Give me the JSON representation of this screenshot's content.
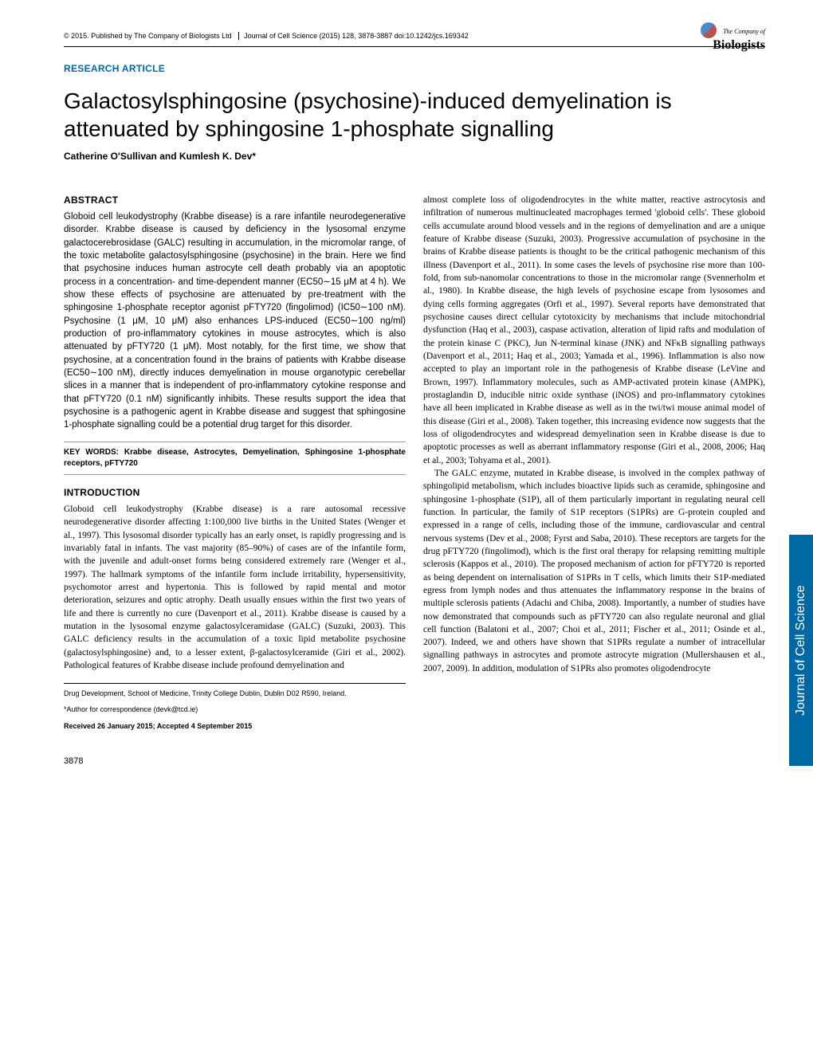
{
  "header": {
    "copyright": "© 2015. Published by The Company of Biologists Ltd",
    "journal": "Journal of Cell Science (2015) 128, 3878-3887 doi:10.1242/jcs.169342"
  },
  "logo": {
    "top": "The Company of",
    "main": "Biologists"
  },
  "article_type": "RESEARCH ARTICLE",
  "title": "Galactosylsphingosine (psychosine)-induced demyelination is attenuated by sphingosine 1-phosphate signalling",
  "authors": "Catherine O'Sullivan and Kumlesh K. Dev*",
  "abstract_head": "ABSTRACT",
  "abstract": "Globoid cell leukodystrophy (Krabbe disease) is a rare infantile neurodegenerative disorder. Krabbe disease is caused by deficiency in the lysosomal enzyme galactocerebrosidase (GALC) resulting in accumulation, in the micromolar range, of the toxic metabolite galactosylsphingosine (psychosine) in the brain. Here we find that psychosine induces human astrocyte cell death probably via an apoptotic process in a concentration- and time-dependent manner (EC50∼15 μM at 4 h). We show these effects of psychosine are attenuated by pre-treatment with the sphingosine 1-phosphate receptor agonist pFTY720 (fingolimod) (IC50∼100 nM). Psychosine (1 μM, 10 μM) also enhances LPS-induced (EC50∼100 ng/ml) production of pro-inflammatory cytokines in mouse astrocytes, which is also attenuated by pFTY720 (1 μM). Most notably, for the first time, we show that psychosine, at a concentration found in the brains of patients with Krabbe disease (EC50∼100 nM), directly induces demyelination in mouse organotypic cerebellar slices in a manner that is independent of pro-inflammatory cytokine response and that pFTY720 (0.1 nM) significantly inhibits. These results support the idea that psychosine is a pathogenic agent in Krabbe disease and suggest that sphingosine 1-phosphate signalling could be a potential drug target for this disorder.",
  "keywords": "KEY WORDS: Krabbe disease, Astrocytes, Demyelination, Sphingosine 1-phosphate receptors, pFTY720",
  "intro_head": "INTRODUCTION",
  "intro_p1": "Globoid cell leukodystrophy (Krabbe disease) is a rare autosomal recessive neurodegenerative disorder affecting 1:100,000 live births in the United States (Wenger et al., 1997). This lysosomal disorder typically has an early onset, is rapidly progressing and is invariably fatal in infants. The vast majority (85–90%) of cases are of the infantile form, with the juvenile and adult-onset forms being considered extremely rare (Wenger et al., 1997). The hallmark symptoms of the infantile form include irritability, hypersensitivity, psychomotor arrest and hypertonia. This is followed by rapid mental and motor deterioration, seizures and optic atrophy. Death usually ensues within the first two years of life and there is currently no cure (Davenport et al., 2011). Krabbe disease is caused by a mutation in the lysosomal enzyme galactosylceramidase (GALC) (Suzuki, 2003). This GALC deficiency results in the accumulation of a toxic lipid metabolite psychosine (galactosylsphingosine) and, to a lesser extent, β-galactosylceramide (Giri et al., 2002). Pathological features of Krabbe disease include profound demyelination and",
  "col2_p1": "almost complete loss of oligodendrocytes in the white matter, reactive astrocytosis and infiltration of numerous multinucleated macrophages termed 'globoid cells'. These globoid cells accumulate around blood vessels and in the regions of demyelination and are a unique feature of Krabbe disease (Suzuki, 2003). Progressive accumulation of psychosine in the brains of Krabbe disease patients is thought to be the critical pathogenic mechanism of this illness (Davenport et al., 2011). In some cases the levels of psychosine rise more than 100-fold, from sub-nanomolar concentrations to those in the micromolar range (Svennerholm et al., 1980). In Krabbe disease, the high levels of psychosine escape from lysosomes and dying cells forming aggregates (Orfi et al., 1997). Several reports have demonstrated that psychosine causes direct cellular cytotoxicity by mechanisms that include mitochondrial dysfunction (Haq et al., 2003), caspase activation, alteration of lipid rafts and modulation of the protein kinase C (PKC), Jun N-terminal kinase (JNK) and NFκB signalling pathways (Davenport et al., 2011; Haq et al., 2003; Yamada et al., 1996). Inflammation is also now accepted to play an important role in the pathogenesis of Krabbe disease (LeVine and Brown, 1997). Inflammatory molecules, such as AMP-activated protein kinase (AMPK), prostaglandin D, inducible nitric oxide synthase (iNOS) and pro-inflammatory cytokines have all been implicated in Krabbe disease as well as in the twi/twi mouse animal model of this disease (Giri et al., 2008). Taken together, this increasing evidence now suggests that the loss of oligodendrocytes and widespread demyelination seen in Krabbe disease is due to apoptotic processes as well as aberrant inflammatory response (Giri et al., 2008, 2006; Haq et al., 2003; Tohyama et al., 2001).",
  "col2_p2": "The GALC enzyme, mutated in Krabbe disease, is involved in the complex pathway of sphingolipid metabolism, which includes bioactive lipids such as ceramide, sphingosine and sphingosine 1-phosphate (S1P), all of them particularly important in regulating neural cell function. In particular, the family of S1P receptors (S1PRs) are G-protein coupled and expressed in a range of cells, including those of the immune, cardiovascular and central nervous systems (Dev et al., 2008; Fyrst and Saba, 2010). These receptors are targets for the drug pFTY720 (fingolimod), which is the first oral therapy for relapsing remitting multiple sclerosis (Kappos et al., 2010). The proposed mechanism of action for pFTY720 is reported as being dependent on internalisation of S1PRs in T cells, which limits their S1P-mediated egress from lymph nodes and thus attenuates the inflammatory response in the brains of multiple sclerosis patients (Adachi and Chiba, 2008). Importantly, a number of studies have now demonstrated that compounds such as pFTY720 can also regulate neuronal and glial cell function (Balatoni et al., 2007; Choi et al., 2011; Fischer et al., 2011; Osinde et al., 2007). Indeed, we and others have shown that S1PRs regulate a number of intracellular signalling pathways in astrocytes and promote astrocyte migration (Mullershausen et al., 2007, 2009). In addition, modulation of S1PRs also promotes oligodendrocyte",
  "affiliation": "Drug Development, School of Medicine, Trinity College Dublin, Dublin D02 R590, Ireland.",
  "correspondence": "*Author for correspondence (devk@tcd.ie)",
  "received": "Received 26 January 2015; Accepted 4 September 2015",
  "page_num": "3878",
  "side_tab": "Journal of Cell Science"
}
